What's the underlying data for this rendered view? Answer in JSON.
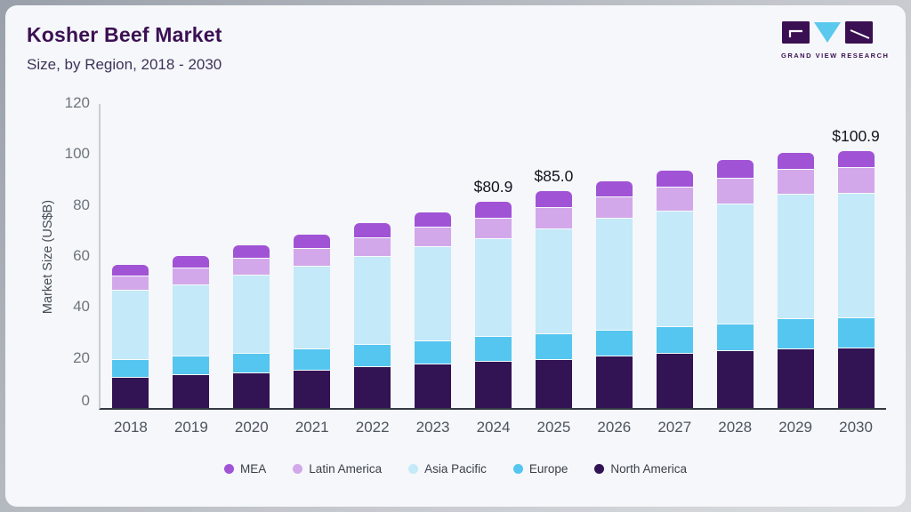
{
  "header": {
    "title": "Kosher Beef Market",
    "subtitle": "Size, by Region, 2018 - 2030"
  },
  "logo": {
    "text": "GRAND VIEW RESEARCH"
  },
  "colors": {
    "card_bg": "#f5f7fa",
    "title": "#3b1053",
    "axis_line_y": "#c9ccd2",
    "axis_line_x": "#343944",
    "logo_triangle": "#5bc9ee",
    "logo_square": "#3b1053"
  },
  "chart_data": {
    "type": "bar",
    "stacked": true,
    "title": "Kosher Beef Market Size, by Region, 2018 - 2030",
    "xlabel": "",
    "ylabel": "Market Size (US$B)",
    "ylim": [
      0,
      120
    ],
    "yticks": [
      0,
      20,
      40,
      60,
      80,
      100,
      120
    ],
    "grid": false,
    "legend_position": "bottom",
    "categories": [
      "2018",
      "2019",
      "2020",
      "2021",
      "2022",
      "2023",
      "2024",
      "2025",
      "2026",
      "2027",
      "2028",
      "2029",
      "2030"
    ],
    "series": [
      {
        "name": "North America",
        "color": "#321353",
        "values": [
          12.2,
          13.3,
          14.0,
          15.1,
          16.4,
          17.6,
          18.5,
          19.2,
          20.6,
          21.7,
          22.5,
          23.4,
          23.7
        ]
      },
      {
        "name": "Europe",
        "color": "#55c6ef",
        "values": [
          7.0,
          7.1,
          7.7,
          8.3,
          8.8,
          9.0,
          9.6,
          10.2,
          10.2,
          10.5,
          10.8,
          11.7,
          11.9
        ]
      },
      {
        "name": "Asia Pacific",
        "color": "#c4e9f8",
        "values": [
          27.3,
          28.2,
          30.6,
          32.5,
          34.5,
          37.0,
          38.4,
          41.2,
          43.7,
          45.4,
          46.9,
          48.9,
          48.9
        ]
      },
      {
        "name": "Latin America",
        "color": "#d2a8ea",
        "values": [
          5.6,
          6.6,
          6.7,
          7.0,
          7.3,
          7.4,
          8.3,
          8.4,
          8.4,
          9.1,
          10.1,
          9.8,
          9.9
        ]
      },
      {
        "name": "MEA",
        "color": "#a153d6",
        "values": [
          4.2,
          4.6,
          4.8,
          5.2,
          5.6,
          5.9,
          6.1,
          6.0,
          6.0,
          6.3,
          6.9,
          6.2,
          6.5
        ]
      }
    ],
    "legend_order": [
      "MEA",
      "Latin America",
      "Asia Pacific",
      "Europe",
      "North America"
    ],
    "annotations": {
      "2024": "$80.9",
      "2025": "$85.0",
      "2030": "$100.9"
    }
  }
}
